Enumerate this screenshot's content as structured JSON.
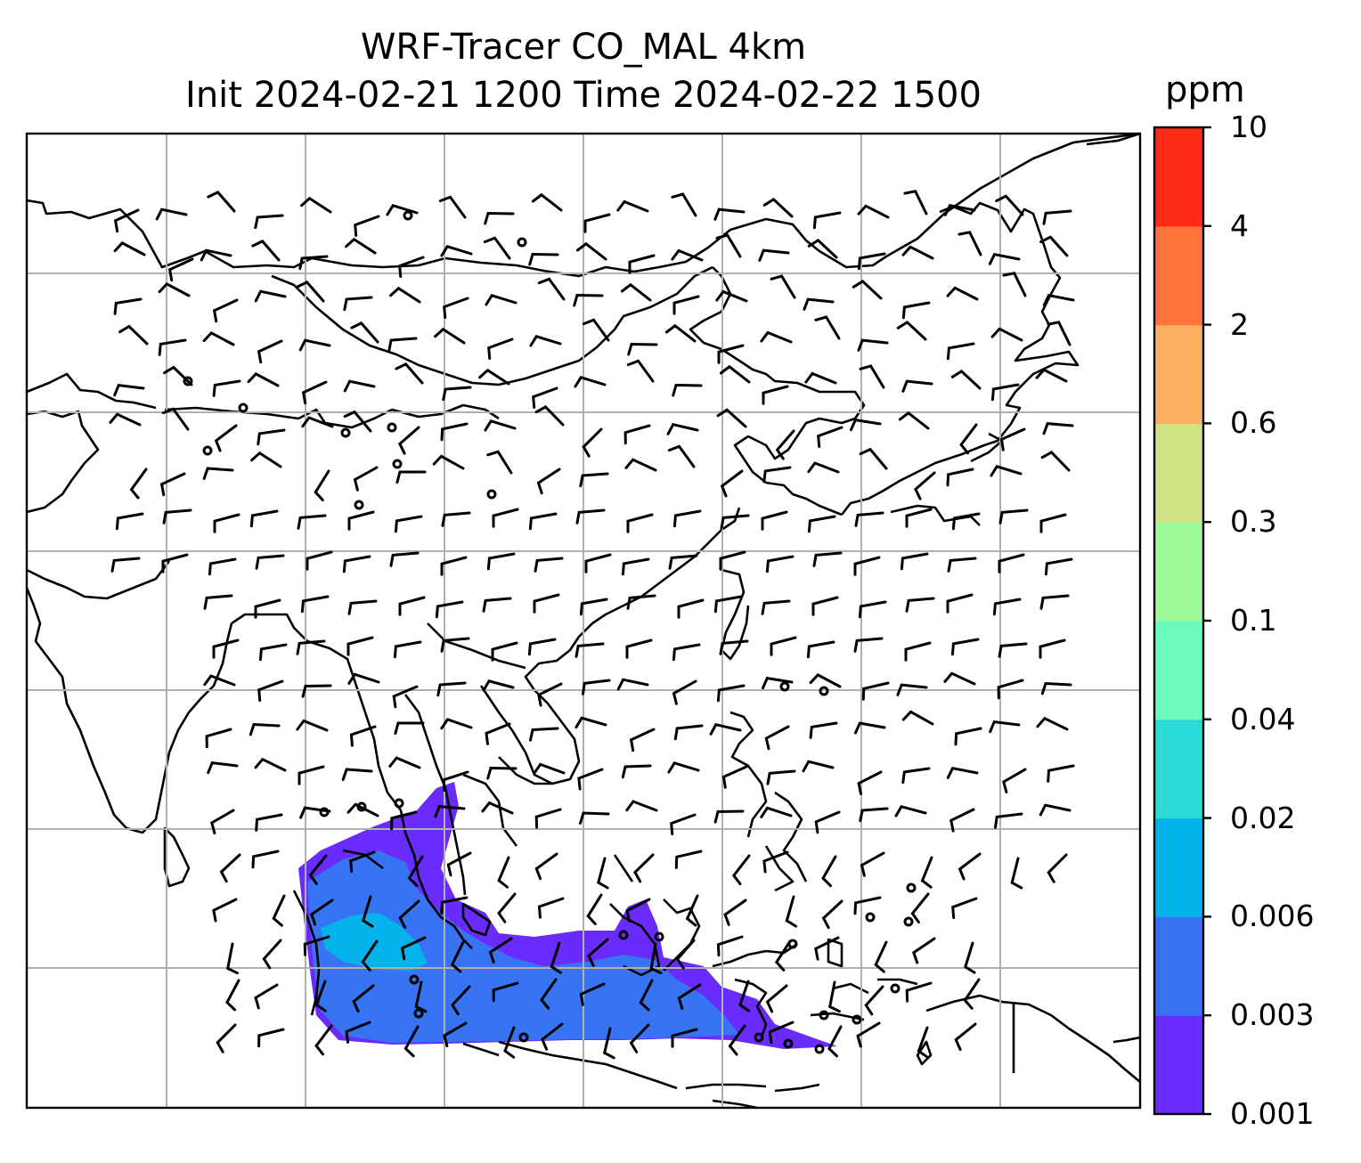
{
  "chart_data": {
    "type": "heatmap",
    "title": "WRF-Tracer CO_MAL 4km",
    "subtitle": "Init 2024-02-21 1200 Time 2024-02-22 1500",
    "colorbar": {
      "label": "ppm",
      "levels": [
        "0.001",
        "0.003",
        "0.006",
        "0.02",
        "0.04",
        "0.1",
        "0.3",
        "0.6",
        "2",
        "4",
        "10"
      ],
      "colors": [
        "#6a2bfd",
        "#3674f3",
        "#04b2ec",
        "#2cdad7",
        "#6bfbbf",
        "#9cfa9b",
        "#cfe284",
        "#fdae61",
        "#ff743c",
        "#fd2b18"
      ]
    },
    "plume_color_max_level": "0.006",
    "grid": true,
    "wind_barbs": true,
    "coastlines": true
  }
}
